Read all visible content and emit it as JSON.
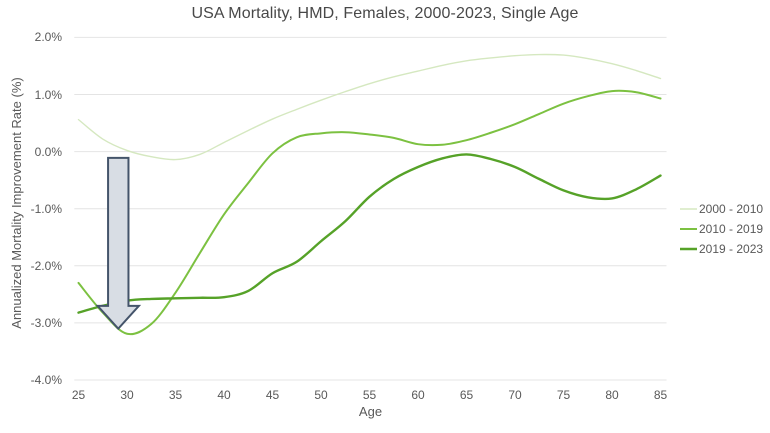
{
  "chart_data": {
    "type": "line",
    "title": "USA Mortality, HMD, Females, 2000-2023, Single Age",
    "xlabel": "Age",
    "ylabel": "Annualized Mortality Improvement Rate (%)",
    "x_ticks": [
      25,
      30,
      35,
      40,
      45,
      50,
      55,
      60,
      65,
      70,
      75,
      80,
      85
    ],
    "y_ticks": [
      {
        "label": "2.0%",
        "value": 2
      },
      {
        "label": "1.0%",
        "value": 1
      },
      {
        "label": "0.0%",
        "value": 0
      },
      {
        "label": "-1.0%",
        "value": -1
      },
      {
        "label": "-2.0%",
        "value": -2
      },
      {
        "label": "-3.0%",
        "value": -3
      },
      {
        "label": "-4.0%",
        "value": -4
      }
    ],
    "ylim": [
      -4,
      2
    ],
    "xlim": [
      25,
      85
    ],
    "grid": "horizontal",
    "gridline_color": "#e4e4e4",
    "legend_position": "right",
    "x": [
      25,
      27.5,
      30,
      32.5,
      35,
      37.5,
      40,
      42.5,
      45,
      47.5,
      50,
      52.5,
      55,
      57.5,
      60,
      62.5,
      65,
      67.5,
      70,
      72.5,
      75,
      77.5,
      80,
      82.5,
      85
    ],
    "series": [
      {
        "name": "2000 - 2010",
        "color": "#d5e8c0",
        "line_width": 1.4,
        "values": [
          0.56,
          0.22,
          0.02,
          -0.09,
          -0.14,
          -0.05,
          0.16,
          0.37,
          0.57,
          0.74,
          0.9,
          1.05,
          1.19,
          1.31,
          1.41,
          1.51,
          1.59,
          1.64,
          1.68,
          1.7,
          1.69,
          1.63,
          1.54,
          1.42,
          1.28
        ]
      },
      {
        "name": "2010 - 2019",
        "color": "#7cc141",
        "line_width": 2,
        "values": [
          -2.3,
          -2.82,
          -3.19,
          -3.02,
          -2.47,
          -1.78,
          -1.1,
          -0.55,
          -0.03,
          0.25,
          0.32,
          0.34,
          0.3,
          0.24,
          0.13,
          0.12,
          0.2,
          0.33,
          0.48,
          0.66,
          0.84,
          0.97,
          1.06,
          1.04,
          0.93
        ]
      },
      {
        "name": "2019 - 2023",
        "color": "#56a228",
        "line_width": 2.4,
        "values": [
          -2.82,
          -2.7,
          -2.61,
          -2.58,
          -2.57,
          -2.56,
          -2.55,
          -2.44,
          -2.13,
          -1.93,
          -1.57,
          -1.22,
          -0.79,
          -0.48,
          -0.27,
          -0.12,
          -0.05,
          -0.13,
          -0.27,
          -0.48,
          -0.68,
          -0.8,
          -0.82,
          -0.66,
          -0.42
        ]
      }
    ],
    "annotation": {
      "type": "block-arrow-down",
      "age": 29.1,
      "from_value": -0.11,
      "to_value": -3.1,
      "fill": "#d8dde4",
      "border": "#44546a"
    }
  }
}
